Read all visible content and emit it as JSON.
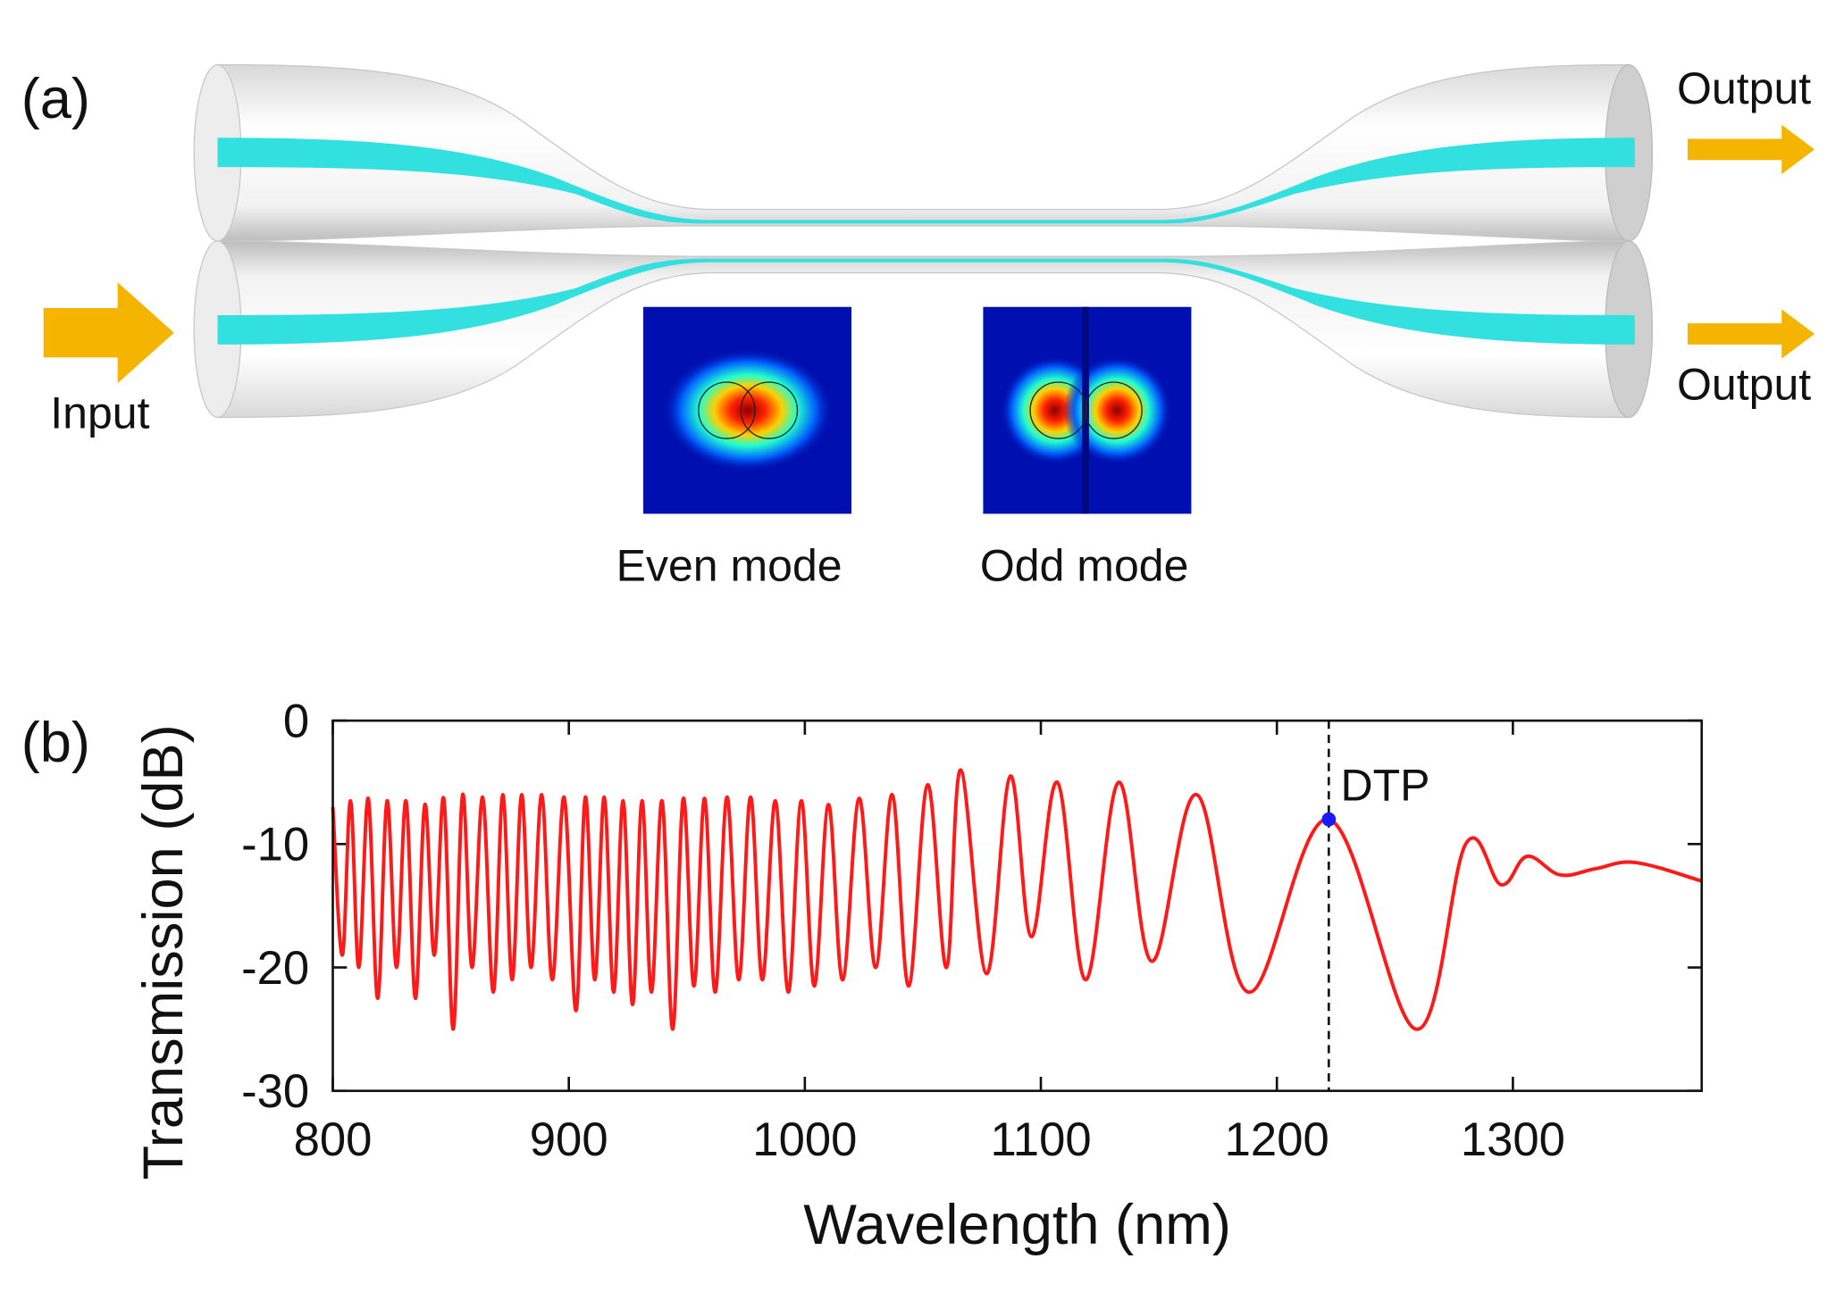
{
  "panel_a": {
    "label": "(a)",
    "input": "Input",
    "outputs": [
      "Output",
      "Output"
    ],
    "modes": [
      "Even mode",
      "Odd mode"
    ]
  },
  "chart_data": {
    "type": "line",
    "panel_label": "(b)",
    "xlabel": "Wavelength (nm)",
    "ylabel": "Transmission (dB)",
    "xlim": [
      800,
      1380
    ],
    "ylim": [
      -30,
      0
    ],
    "xticks": [
      800,
      900,
      1000,
      1100,
      1200,
      1300
    ],
    "yticks": [
      0,
      -10,
      -20,
      -30
    ],
    "color": "#ff1a1a",
    "x": [
      800,
      804,
      807.5,
      811,
      815,
      819,
      823,
      827,
      831,
      835,
      839,
      843,
      847,
      851,
      855,
      859,
      863.5,
      868,
      872,
      876,
      880,
      884,
      888.5,
      893,
      898,
      903,
      907,
      911,
      915,
      919,
      923,
      927,
      931,
      935,
      939.5,
      944,
      948.5,
      953,
      957.5,
      962,
      967,
      972,
      977,
      982,
      987.5,
      993,
      998.5,
      1004,
      1010,
      1016,
      1023,
      1030,
      1037,
      1044,
      1052,
      1060,
      1066,
      1077,
      1087,
      1096,
      1107,
      1119,
      1133,
      1147,
      1166,
      1188,
      1222,
      1259,
      1280,
      1295,
      1306,
      1320,
      1335,
      1352,
      1380
    ],
    "values": [
      -7,
      -19,
      -6.5,
      -20,
      -6.3,
      -22.5,
      -6.5,
      -20,
      -6.5,
      -22.5,
      -6.8,
      -19,
      -6.3,
      -25,
      -6,
      -20,
      -6.2,
      -22,
      -6,
      -21,
      -6,
      -20,
      -6,
      -21,
      -6.2,
      -23.5,
      -6.2,
      -21,
      -6.2,
      -22,
      -6.5,
      -23,
      -6.5,
      -22,
      -6.5,
      -25,
      -6.3,
      -21.5,
      -6.3,
      -22,
      -6.2,
      -21,
      -6.2,
      -21,
      -6.5,
      -22,
      -6.5,
      -21.5,
      -6.8,
      -21,
      -6.3,
      -20,
      -6,
      -21.5,
      -5.2,
      -20,
      -4,
      -20.5,
      -4.5,
      -17.5,
      -5,
      -21,
      -5,
      -19.5,
      -6,
      -22,
      -8,
      -25,
      -10,
      -13.3,
      -11,
      -12.5,
      -12,
      -11.5,
      -13
    ],
    "annotation": {
      "text": "DTP",
      "x": 1222,
      "y": -8,
      "color": "#1a1aff"
    }
  }
}
